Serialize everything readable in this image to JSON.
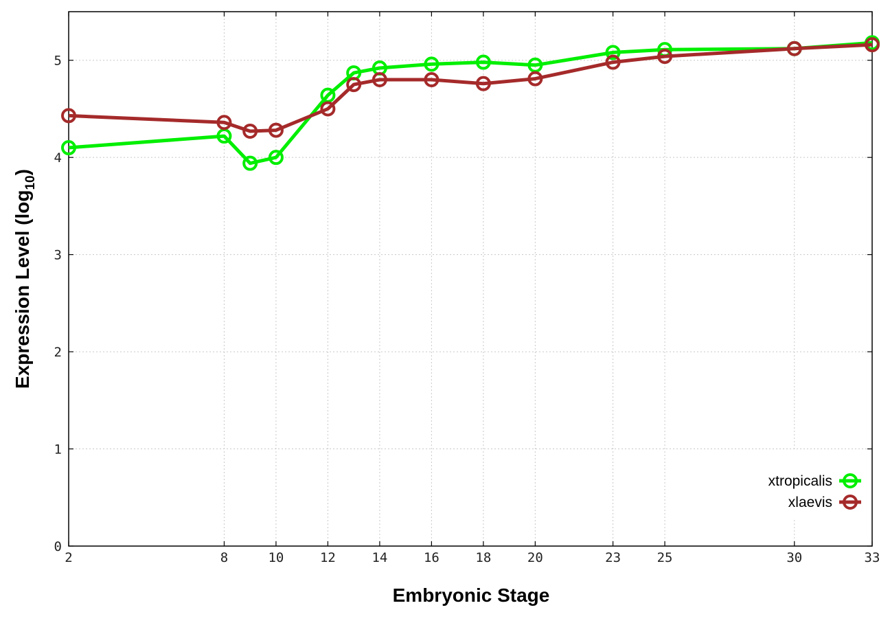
{
  "chart_data": {
    "type": "line",
    "xlabel": "Embryonic Stage",
    "ylabel_main": "Expression Level (log",
    "ylabel_sub": "10",
    "ylabel_close": ")",
    "x": [
      2,
      8,
      9,
      10,
      12,
      13,
      14,
      16,
      18,
      20,
      23,
      25,
      30,
      33
    ],
    "xticks": [
      2,
      8,
      10,
      12,
      14,
      16,
      18,
      20,
      23,
      25,
      30,
      33
    ],
    "yticks": [
      0,
      1,
      2,
      3,
      4,
      5
    ],
    "xlim": [
      2,
      33
    ],
    "ylim": [
      0,
      5.5
    ],
    "grid": true,
    "legend_position": "bottom-right",
    "series": [
      {
        "name": "xtropicalis",
        "color": "#00ee00",
        "values": [
          4.1,
          4.22,
          3.94,
          4.0,
          4.64,
          4.87,
          4.92,
          4.96,
          4.98,
          4.95,
          5.08,
          5.11,
          5.12,
          5.18
        ]
      },
      {
        "name": "xlaevis",
        "color": "#a52a2a",
        "values": [
          4.43,
          4.36,
          4.27,
          4.28,
          4.5,
          4.75,
          4.8,
          4.8,
          4.76,
          4.81,
          4.98,
          5.04,
          5.12,
          5.16
        ]
      }
    ]
  }
}
